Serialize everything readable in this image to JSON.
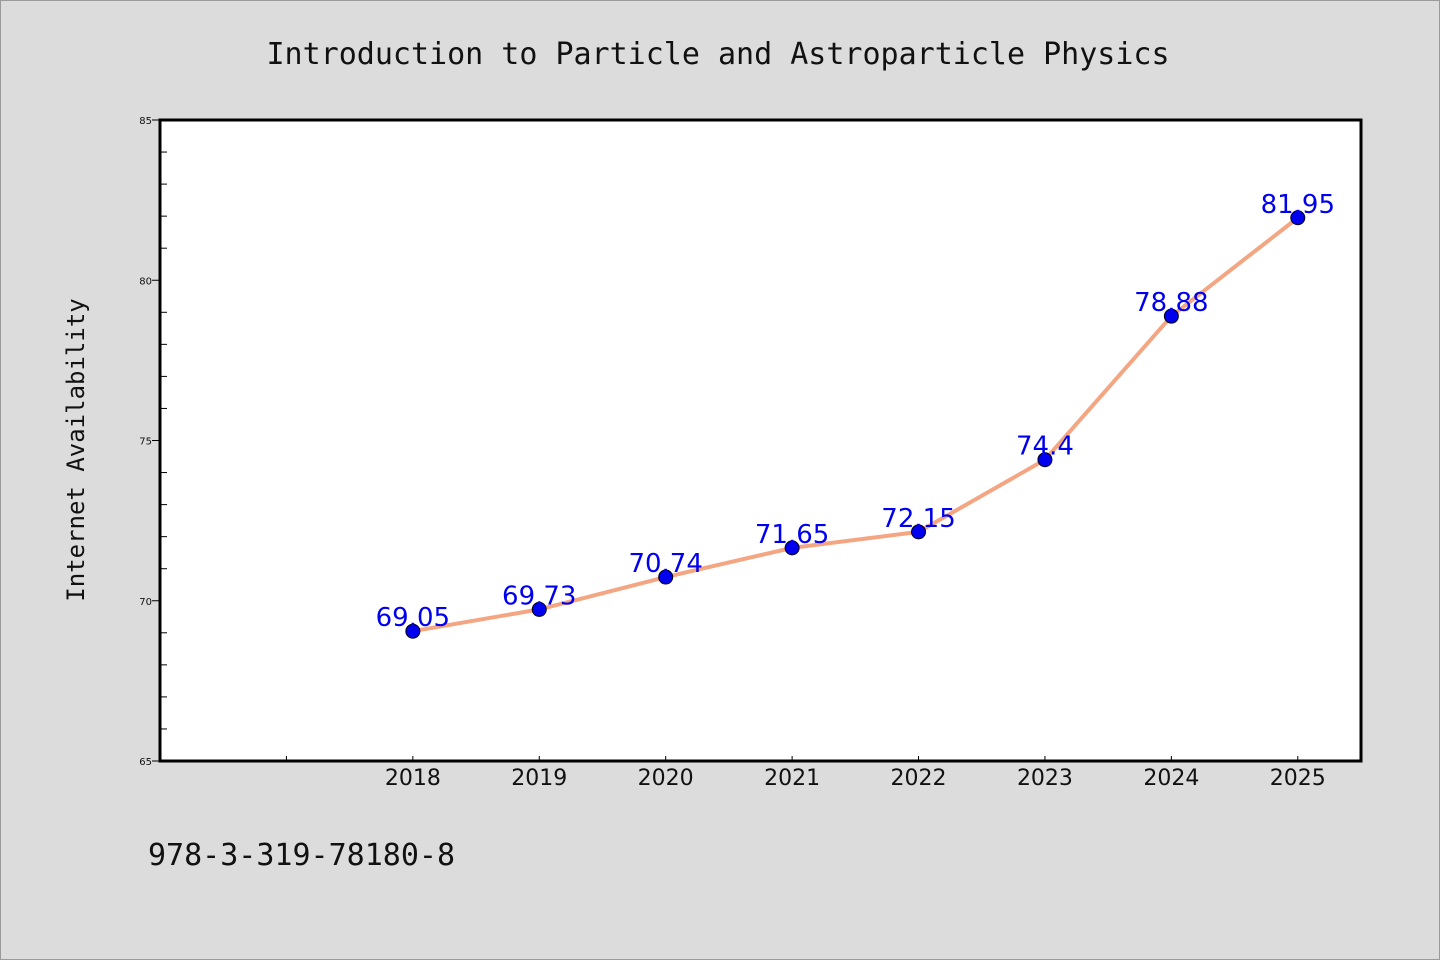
{
  "colors": {
    "background": "#dcdcdc",
    "plot_background": "#ffffff",
    "line": "#f4a582",
    "marker": "#0000ee",
    "data_label": "#0000ee"
  },
  "footnote": "978-3-319-78180-8",
  "chart_data": {
    "type": "line",
    "title": "Introduction to Particle and Astroparticle Physics",
    "xlabel": "",
    "ylabel": "Internet Availability",
    "x": [
      "2018",
      "2019",
      "2020",
      "2021",
      "2022",
      "2023",
      "2024",
      "2025"
    ],
    "x_range_slots": [
      -2,
      7.5
    ],
    "y_ticks": [
      "65",
      "70",
      "75",
      "80",
      "85"
    ],
    "ylim": [
      65,
      85
    ],
    "grid": false,
    "legend": "none",
    "series": [
      {
        "values": [
          69.05,
          69.73,
          70.74,
          71.65,
          72.15,
          74.4,
          78.88,
          81.95
        ],
        "labels": [
          "69.05",
          "69.73",
          "70.74",
          "71.65",
          "72.15",
          "74.4",
          "78.88",
          "81.95"
        ]
      }
    ]
  }
}
